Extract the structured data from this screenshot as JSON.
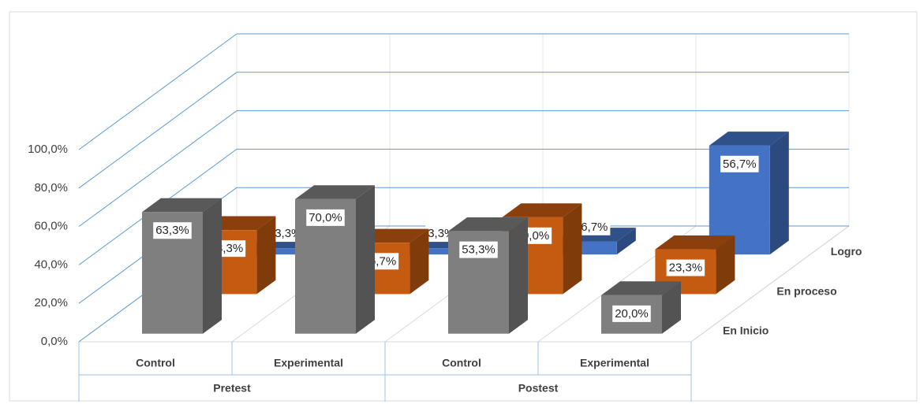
{
  "chart_data": {
    "type": "bar3d",
    "groups": [
      {
        "label": "Pretest",
        "categories": [
          "Control",
          "Experimental"
        ]
      },
      {
        "label": "Postest",
        "categories": [
          "Control",
          "Experimental"
        ]
      }
    ],
    "series": [
      {
        "name": "En Inicio",
        "color": "#7f7f7f",
        "values": [
          63.3,
          70.0,
          53.3,
          20.0
        ],
        "value_labels": [
          "63,3%",
          "70,0%",
          "53,3%",
          "20,0%"
        ]
      },
      {
        "name": "En proceso",
        "color": "#c55a11",
        "values": [
          33.3,
          26.7,
          40.0,
          23.3
        ],
        "value_labels": [
          "33,3%",
          "26,7%",
          "40,0%",
          "23,3%"
        ]
      },
      {
        "name": "Logro",
        "color": "#4472c4",
        "values": [
          3.3,
          3.3,
          6.7,
          56.7
        ],
        "value_labels": [
          "3,3%",
          "3,3%",
          "6,7%",
          "56,7%"
        ]
      }
    ],
    "ylim": [
      0,
      100
    ],
    "yticks": [
      {
        "value": 0,
        "label": "0,0%"
      },
      {
        "value": 20,
        "label": "20,0%"
      },
      {
        "value": 40,
        "label": "40,0%"
      },
      {
        "value": 60,
        "label": "60,0%"
      },
      {
        "value": 80,
        "label": "80,0%"
      },
      {
        "value": 100,
        "label": "100,0%"
      }
    ],
    "grid": true
  }
}
